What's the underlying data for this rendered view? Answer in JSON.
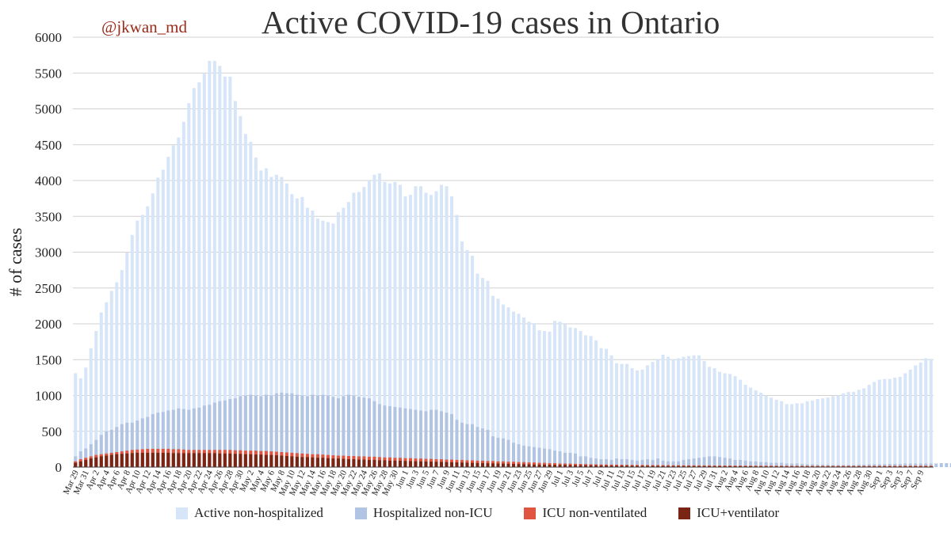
{
  "handle": "@jkwan_md",
  "colors": {
    "active": "#d7e5f8",
    "hosp": "#b2c4e3",
    "icu": "#e05540",
    "icuvent": "#7a2414",
    "grid": "#d0d0d0"
  },
  "chart_data": {
    "type": "bar",
    "stacked": true,
    "title": "Active COVID-19 cases in Ontario",
    "ylabel": "# of cases",
    "xlabel": "",
    "ylim": [
      0,
      6000
    ],
    "yticks": [
      0,
      500,
      1000,
      1500,
      2000,
      2500,
      3000,
      3500,
      4000,
      4500,
      5000,
      5500,
      6000
    ],
    "grid": true,
    "legend_position": "bottom",
    "start_date": "Mar 29",
    "x_tick_labels": [
      "Mar 29",
      "Mar 31",
      "Apr 2",
      "Apr 4",
      "Apr 6",
      "Apr 8",
      "Apr 10",
      "Apr 12",
      "Apr 14",
      "Apr 16",
      "Apr 18",
      "Apr 20",
      "Apr 22",
      "Apr 24",
      "Apr 26",
      "Apr 28",
      "Apr 30",
      "May 2",
      "May 4",
      "May 6",
      "May 8",
      "May 10",
      "May 12",
      "May 14",
      "May 16",
      "May 18",
      "May 20",
      "May 22",
      "May 24",
      "May 26",
      "May 28",
      "May 30",
      "Jun 1",
      "Jun 3",
      "Jun 5",
      "Jun 7",
      "Jun 9",
      "Jun 11",
      "Jun 13",
      "Jun 15",
      "Jun 17",
      "Jun 19",
      "Jun 21",
      "Jun 23",
      "Jun 25",
      "Jun 27",
      "Jun 29",
      "Jul 1",
      "Jul 3",
      "Jul 5",
      "Jul 7",
      "Jul 9",
      "Jul 11",
      "Jul 13",
      "Jul 15",
      "Jul 17",
      "Jul 19",
      "Jul 21",
      "Jul 23",
      "Jul 25",
      "Jul 27",
      "Jul 29",
      "Jul 31",
      "Aug 2",
      "Aug 4",
      "Aug 6",
      "Aug 8",
      "Aug 10",
      "Aug 12",
      "Aug 14",
      "Aug 16",
      "Aug 18",
      "Aug 20",
      "Aug 22",
      "Aug 24",
      "Aug 26",
      "Aug 28",
      "Aug 30",
      "Sep 1",
      "Sep 3",
      "Sep 5",
      "Sep 7",
      "Sep 9"
    ],
    "series": [
      {
        "name": "Active non-hospitalized",
        "key": "active",
        "totals": [
          1310,
          1240,
          1390,
          1660,
          1900,
          2160,
          2300,
          2460,
          2580,
          2750,
          3000,
          3240,
          3440,
          3520,
          3640,
          3820,
          4040,
          4150,
          4330,
          4490,
          4600,
          4820,
          5080,
          5290,
          5370,
          5490,
          5670,
          5670,
          5600,
          5450,
          5450,
          5110,
          4900,
          4650,
          4540,
          4320,
          4140,
          4170,
          4050,
          4080,
          4050,
          3960,
          3810,
          3750,
          3770,
          3620,
          3580,
          3470,
          3440,
          3420,
          3400,
          3560,
          3620,
          3700,
          3830,
          3840,
          3910,
          4000,
          4080,
          4100,
          3980,
          3960,
          3980,
          3940,
          3780,
          3800,
          3920,
          3920,
          3830,
          3800,
          3850,
          3940,
          3920,
          3780,
          3520,
          3150,
          3030,
          2950,
          2700,
          2640,
          2600,
          2390,
          2350,
          2270,
          2230,
          2170,
          2140,
          2090,
          2030,
          2010,
          1910,
          1900,
          1890,
          2040,
          2030,
          2000,
          1950,
          1940,
          1900,
          1840,
          1830,
          1770,
          1660,
          1650,
          1560,
          1450,
          1440,
          1440,
          1380,
          1350,
          1360,
          1420,
          1470,
          1500,
          1570,
          1540,
          1500,
          1520,
          1540,
          1550,
          1560,
          1560,
          1480,
          1400,
          1380,
          1330,
          1310,
          1300,
          1270,
          1220,
          1150,
          1110,
          1070,
          1040,
          1000,
          970,
          940,
          920,
          880,
          880,
          890,
          890,
          920,
          930,
          950,
          960,
          970,
          990,
          1000,
          1030,
          1050,
          1050,
          1080,
          1100,
          1150,
          1190,
          1220,
          1230,
          1230,
          1250,
          1260,
          1310,
          1360,
          1420,
          1460,
          1520,
          1510
        ]
      },
      {
        "name": "Hospitalized non-ICU",
        "key": "hosp",
        "totals": [
          150,
          220,
          260,
          320,
          380,
          450,
          500,
          520,
          560,
          600,
          620,
          620,
          650,
          680,
          700,
          740,
          760,
          770,
          790,
          800,
          820,
          810,
          800,
          820,
          830,
          860,
          870,
          900,
          920,
          930,
          950,
          960,
          990,
          1000,
          1010,
          1000,
          990,
          1010,
          1000,
          1030,
          1040,
          1030,
          1030,
          1010,
          1000,
          990,
          1010,
          1000,
          1010,
          1000,
          980,
          960,
          990,
          1010,
          1000,
          980,
          970,
          960,
          920,
          880,
          860,
          850,
          840,
          830,
          820,
          810,
          800,
          790,
          780,
          800,
          800,
          780,
          760,
          740,
          660,
          620,
          600,
          600,
          560,
          540,
          520,
          430,
          410,
          400,
          380,
          340,
          320,
          300,
          290,
          280,
          270,
          260,
          250,
          230,
          220,
          200,
          200,
          190,
          150,
          150,
          130,
          120,
          110,
          110,
          100,
          120,
          110,
          110,
          100,
          90,
          100,
          110,
          100,
          120,
          90,
          80,
          80,
          80,
          100,
          110,
          120,
          130,
          140,
          150,
          150,
          140,
          130,
          120,
          100,
          100,
          90,
          80,
          80,
          70,
          70,
          60,
          60,
          60,
          50,
          50,
          50,
          45,
          40,
          40,
          35,
          35,
          35,
          30,
          30,
          30,
          30,
          30,
          35,
          35,
          40,
          40,
          40,
          40,
          45,
          45,
          45,
          50,
          50,
          50,
          50,
          50,
          50,
          50,
          55,
          55,
          55,
          60,
          60
        ]
      },
      {
        "name": "ICU non-ventilated",
        "key": "icu",
        "totals": [
          80,
          110,
          130,
          150,
          170,
          180,
          190,
          200,
          210,
          220,
          230,
          240,
          245,
          250,
          255,
          255,
          255,
          255,
          255,
          250,
          250,
          245,
          240,
          240,
          240,
          240,
          240,
          240,
          240,
          240,
          240,
          235,
          235,
          230,
          230,
          230,
          225,
          225,
          220,
          215,
          210,
          205,
          200,
          195,
          190,
          185,
          180,
          180,
          175,
          170,
          165,
          160,
          160,
          155,
          155,
          150,
          150,
          145,
          145,
          140,
          135,
          135,
          130,
          130,
          125,
          125,
          120,
          120,
          115,
          115,
          110,
          110,
          105,
          105,
          100,
          100,
          95,
          95,
          90,
          90,
          85,
          85,
          80,
          80,
          75,
          75,
          70,
          70,
          65,
          65,
          60,
          60,
          55,
          55,
          50,
          50,
          48,
          46,
          44,
          42,
          40,
          38,
          37,
          36,
          35,
          34,
          33,
          32,
          31,
          30,
          30,
          29,
          28,
          28,
          27,
          27,
          26,
          26,
          25,
          25,
          25,
          24,
          24,
          24,
          23,
          23,
          23,
          22,
          22,
          22,
          21,
          21,
          21,
          20,
          20,
          20,
          20,
          20,
          19,
          19,
          19,
          19,
          19,
          19,
          18,
          18,
          18,
          18,
          18,
          18,
          18,
          18,
          18,
          18,
          18,
          18,
          19,
          19,
          19,
          19,
          19,
          20,
          20,
          20,
          20,
          20,
          20
        ]
      },
      {
        "name": "ICU+ventilator",
        "key": "icuvent",
        "totals": [
          60,
          80,
          100,
          120,
          135,
          150,
          160,
          170,
          180,
          185,
          190,
          195,
          200,
          200,
          200,
          200,
          200,
          200,
          200,
          195,
          195,
          195,
          195,
          195,
          195,
          195,
          195,
          195,
          190,
          190,
          190,
          185,
          185,
          180,
          180,
          175,
          175,
          170,
          170,
          165,
          160,
          155,
          150,
          145,
          140,
          140,
          135,
          130,
          130,
          125,
          120,
          120,
          115,
          110,
          110,
          105,
          105,
          100,
          100,
          95,
          95,
          90,
          90,
          88,
          86,
          84,
          82,
          80,
          78,
          76,
          74,
          72,
          70,
          68,
          66,
          64,
          62,
          60,
          58,
          56,
          54,
          52,
          50,
          48,
          46,
          44,
          42,
          40,
          38,
          36,
          35,
          34,
          33,
          32,
          31,
          30,
          29,
          28,
          27,
          26,
          25,
          24,
          23,
          22,
          21,
          20,
          20,
          19,
          19,
          18,
          18,
          17,
          17,
          16,
          16,
          15,
          15,
          15,
          14,
          14,
          14,
          13,
          13,
          13,
          12,
          12,
          12,
          12,
          11,
          11,
          11,
          11,
          10,
          10,
          10,
          10,
          10,
          10,
          9,
          9,
          9,
          9,
          9,
          9,
          9,
          9,
          9,
          9,
          9,
          9,
          9,
          9,
          9,
          9,
          9,
          9,
          9,
          9,
          9,
          9,
          9,
          9,
          9,
          9,
          9,
          9,
          9
        ]
      }
    ]
  }
}
